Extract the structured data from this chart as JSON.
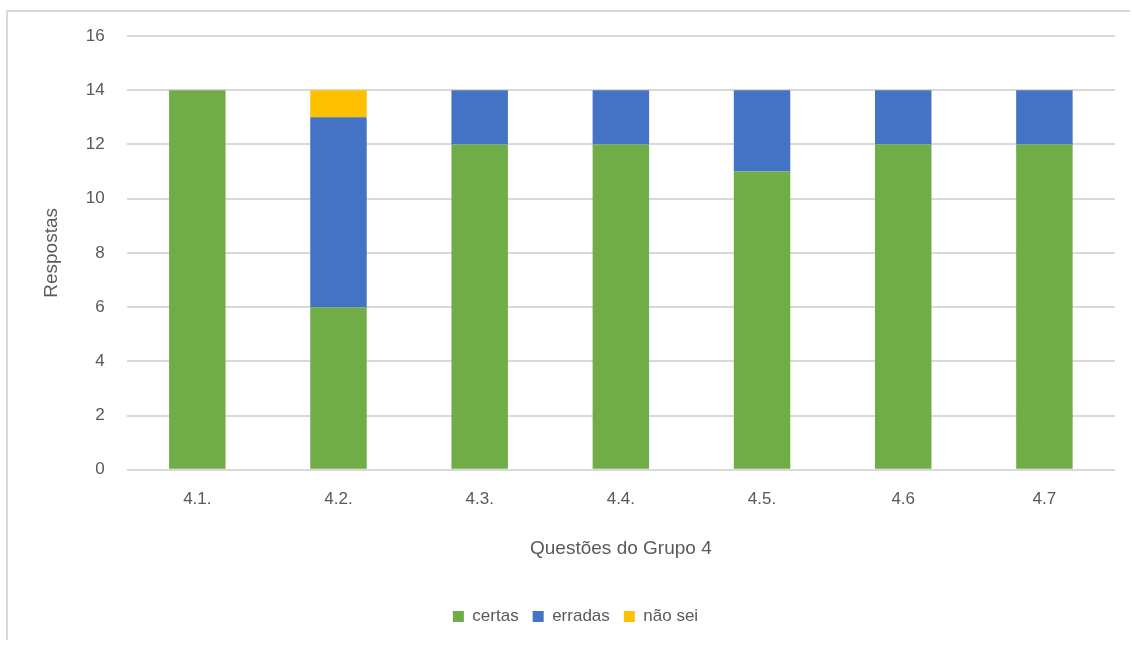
{
  "chart_data": {
    "type": "bar",
    "stacked": true,
    "categories": [
      "4.1.",
      "4.2.",
      "4.3.",
      "4.4.",
      "4.5.",
      "4.6",
      "4.7"
    ],
    "series": [
      {
        "name": "certas",
        "color": "#70ad47",
        "values": [
          14,
          6,
          12,
          12,
          11,
          12,
          12
        ]
      },
      {
        "name": "erradas",
        "color": "#4472c4",
        "values": [
          0,
          7,
          2,
          2,
          3,
          2,
          2
        ]
      },
      {
        "name": "não sei",
        "color": "#ffc000",
        "values": [
          0,
          1,
          0,
          0,
          0,
          0,
          0
        ]
      }
    ],
    "xlabel": "Questões do Grupo 4",
    "ylabel": "Respostas",
    "ylim": [
      0,
      16
    ],
    "yticks": [
      0,
      2,
      4,
      6,
      8,
      10,
      12,
      14,
      16
    ],
    "grid": "y",
    "legend": "bottom"
  }
}
